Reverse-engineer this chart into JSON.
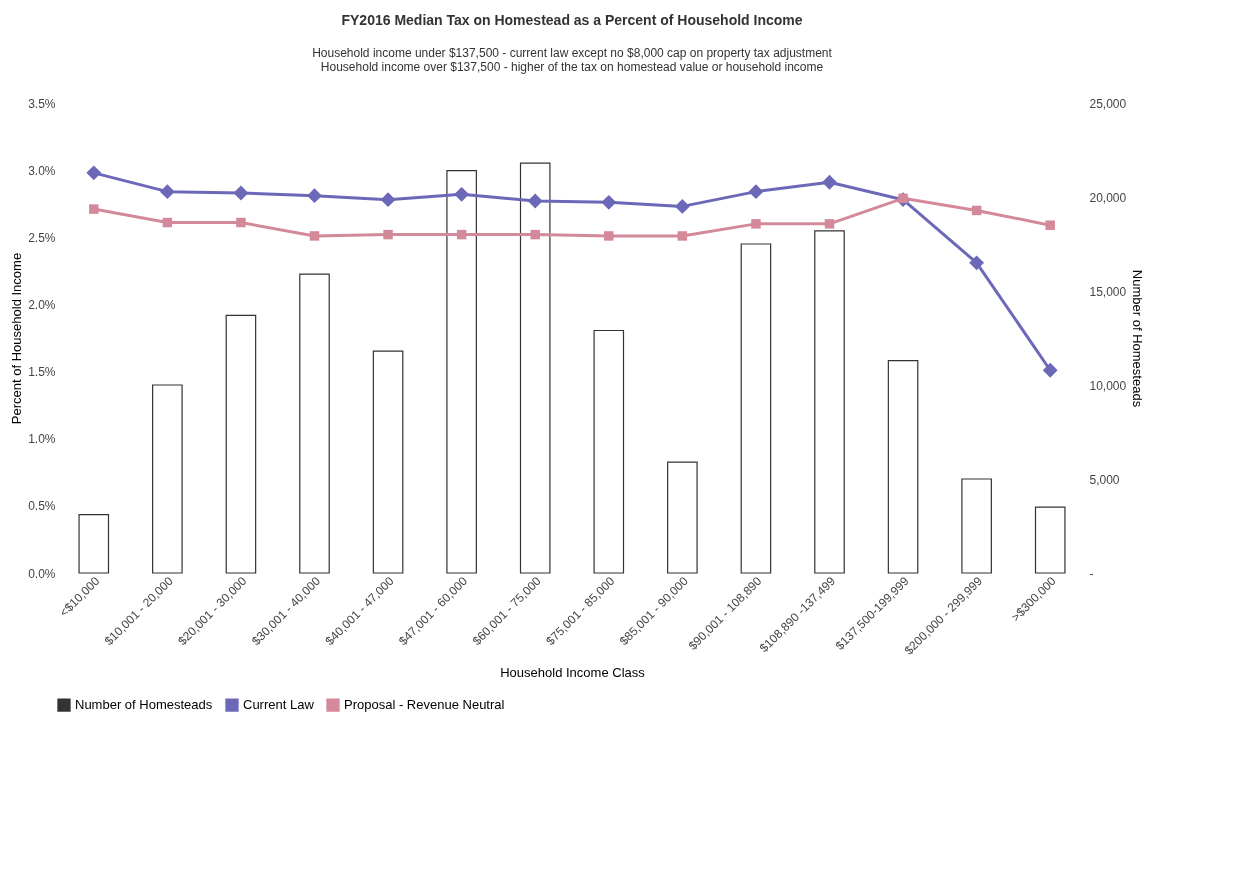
{
  "chart_data": {
    "type": "bar",
    "title": "FY2016 Median Tax on Homestead as a Percent of Household Income",
    "subtitle": "Household income under $137,500 - current law except no $8,000 cap on  property tax adjustment\nHousehold income over $137,500 - higher of the tax on homestead value or household income",
    "xlabel": "Household Income Class",
    "ylabel": "Percent of Household Income",
    "y2label": "Number of Homesteads",
    "categories": [
      "<$10,000",
      "$10,001 - 20,000",
      "$20,001 - 30,000",
      "$30,001 - 40,000",
      "$40,001 - 47,000",
      "$47,001 - 60,000",
      "$60,001 - 75,000",
      "$75,001 - 85,000",
      "$85,001 - 90,000",
      "$90,001 - 108,890",
      "$108,890 -137,499",
      "$137,500-199,999",
      "$200,000 - 299,999",
      ">$300,000"
    ],
    "series": [
      {
        "name": "Number of Homesteads",
        "axis": "y2",
        "color": "#333333",
        "values": [
          3100,
          10000,
          13700,
          15900,
          11800,
          21400,
          21800,
          12900,
          5900,
          17500,
          18200,
          11300,
          5000,
          3500
        ]
      },
      {
        "name": "Current Law",
        "type": "line",
        "marker": "diamond",
        "color": "#6c68b8",
        "values": [
          2.98,
          2.84,
          2.83,
          2.81,
          2.78,
          2.82,
          2.77,
          2.76,
          2.73,
          2.84,
          2.91,
          2.78,
          2.31,
          1.51
        ]
      },
      {
        "name": "Proposal - Revenue Neutral",
        "type": "line",
        "marker": "square",
        "color": "#d4899a",
        "values": [
          2.71,
          2.61,
          2.61,
          2.51,
          2.52,
          2.52,
          2.52,
          2.51,
          2.51,
          2.6,
          2.6,
          2.79,
          2.7,
          2.59
        ]
      }
    ],
    "ylim": [
      0,
      3.5
    ],
    "yticks": [
      {
        "value": 0,
        "label": "0.0%"
      },
      {
        "value": 0.5,
        "label": "0.5%"
      },
      {
        "value": 1,
        "label": "1.0%"
      },
      {
        "value": 1.5,
        "label": "1.5%"
      },
      {
        "value": 2,
        "label": "2.0%"
      },
      {
        "value": 2.5,
        "label": "2.5%"
      },
      {
        "value": 3,
        "label": "3.0%"
      },
      {
        "value": 3.5,
        "label": "3.5%"
      }
    ],
    "y2lim": [
      0,
      25000
    ],
    "y2ticks": [
      {
        "value": 0,
        "label": "-"
      },
      {
        "value": 5000,
        "label": "5,000"
      },
      {
        "value": 10000,
        "label": "10,000"
      },
      {
        "value": 15000,
        "label": "15,000"
      },
      {
        "value": 20000,
        "label": "20,000"
      },
      {
        "value": 25000,
        "label": "25,000"
      }
    ],
    "legend": "bottom"
  }
}
